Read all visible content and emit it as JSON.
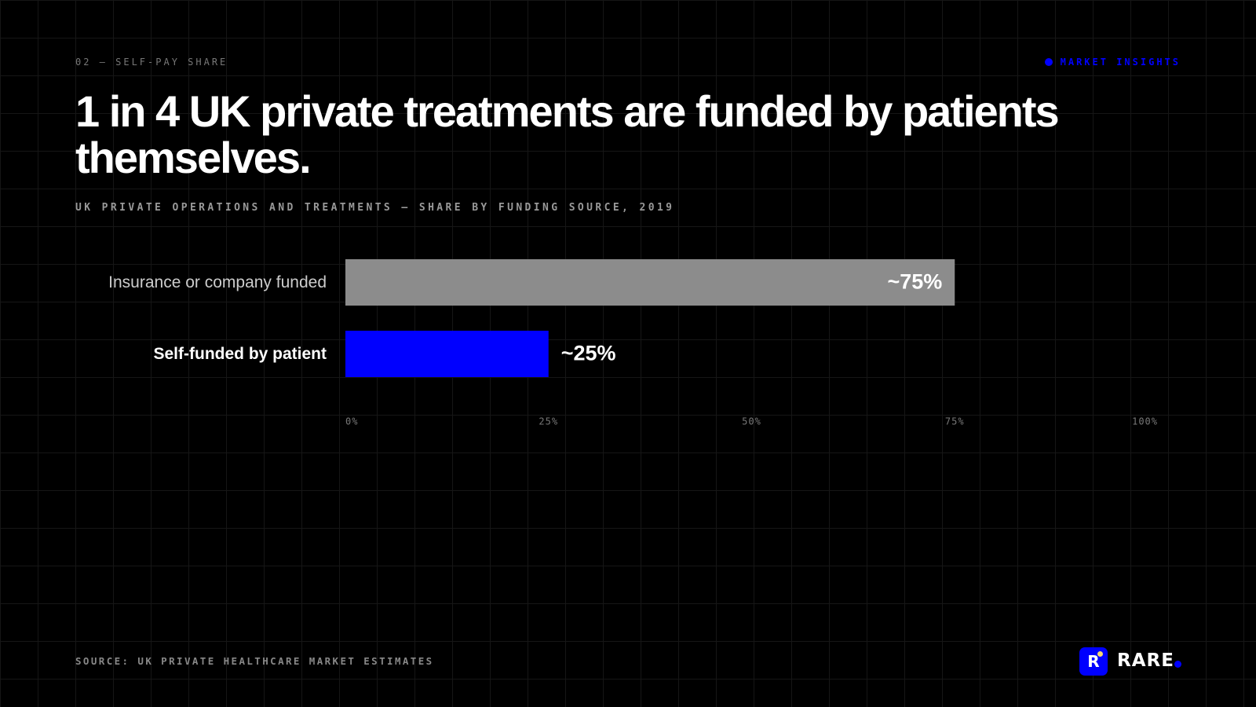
{
  "kicker": "02 — SELF-PAY SHARE",
  "tag": "MARKET INSIGHTS",
  "source": "SOURCE: UK PRIVATE HEALTHCARE MARKET ESTIMATES",
  "brand": {
    "logo": "R",
    "name": "RARE"
  },
  "chart_data": {
    "type": "bar",
    "orientation": "horizontal",
    "title": "1 in 4 UK private treatments are funded by patients themselves.",
    "subtitle": "UK PRIVATE OPERATIONS AND TREATMENTS — SHARE BY FUNDING SOURCE, 2019",
    "categories": [
      "Insurance or company funded",
      "Self-funded by patient"
    ],
    "values": [
      75,
      25
    ],
    "value_labels": [
      "~75%",
      "~25%"
    ],
    "colors": [
      "#8c8c8c",
      "#0000ff"
    ],
    "xlim": [
      0,
      100
    ],
    "xticks": [
      {
        "value": 0,
        "label": "0%"
      },
      {
        "value": 25,
        "label": "25%"
      },
      {
        "value": 50,
        "label": "50%"
      },
      {
        "value": 75,
        "label": "75%"
      },
      {
        "value": 100,
        "label": "100%"
      }
    ],
    "grid": false
  }
}
